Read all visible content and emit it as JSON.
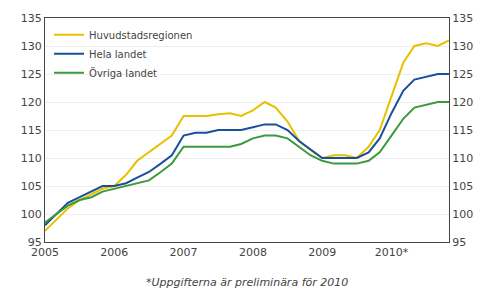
{
  "chart_data": {
    "type": "line",
    "annotations": [
      "*Uppgifterna är preliminära för 2010"
    ],
    "x": [
      2005.0,
      2005.17,
      2005.33,
      2005.5,
      2005.67,
      2005.83,
      2006.0,
      2006.17,
      2006.33,
      2006.5,
      2006.67,
      2006.83,
      2007.0,
      2007.17,
      2007.33,
      2007.5,
      2007.67,
      2007.83,
      2008.0,
      2008.17,
      2008.33,
      2008.5,
      2008.67,
      2008.83,
      2009.0,
      2009.17,
      2009.33,
      2009.5,
      2009.67,
      2009.83,
      2010.0,
      2010.17,
      2010.33,
      2010.5,
      2010.67,
      2010.83
    ],
    "series": [
      {
        "name": "Huvudstadsregionen",
        "color": "#e8c000",
        "values": [
          97.0,
          99.0,
          101.0,
          102.5,
          103.5,
          104.5,
          105.0,
          107.0,
          109.5,
          111.0,
          112.5,
          114.0,
          117.5,
          117.5,
          117.5,
          117.8,
          118.0,
          117.5,
          118.5,
          120.0,
          119.0,
          116.5,
          113.0,
          111.5,
          110.0,
          110.5,
          110.5,
          110.0,
          112.0,
          115.0,
          121.0,
          127.0,
          130.0,
          130.5,
          130.0,
          131.0
        ]
      },
      {
        "name": "Hela landet",
        "color": "#1a4f9c",
        "values": [
          98.0,
          100.0,
          102.0,
          103.0,
          104.0,
          105.0,
          105.0,
          105.5,
          106.5,
          107.5,
          109.0,
          110.5,
          114.0,
          114.5,
          114.5,
          115.0,
          115.0,
          115.0,
          115.5,
          116.0,
          116.0,
          115.0,
          113.0,
          111.5,
          110.0,
          110.0,
          110.0,
          110.0,
          111.0,
          113.5,
          118.0,
          122.0,
          124.0,
          124.5,
          125.0,
          125.0
        ]
      },
      {
        "name": "Övriga landet",
        "color": "#3a9a3a",
        "values": [
          98.5,
          100.0,
          101.5,
          102.5,
          103.0,
          104.0,
          104.5,
          105.0,
          105.5,
          106.0,
          107.5,
          109.0,
          112.0,
          112.0,
          112.0,
          112.0,
          112.0,
          112.5,
          113.5,
          114.0,
          114.0,
          113.5,
          112.0,
          110.5,
          109.5,
          109.0,
          109.0,
          109.0,
          109.5,
          111.0,
          114.0,
          117.0,
          119.0,
          119.5,
          120.0,
          120.0
        ]
      }
    ],
    "xlim": [
      2005.0,
      2010.83
    ],
    "xticks": [
      2005,
      2006,
      2007,
      2008,
      2009,
      {
        "value": 2010,
        "label": "2010*"
      }
    ],
    "ylim": [
      95,
      135
    ],
    "yticks": [
      95,
      100,
      105,
      110,
      115,
      120,
      125,
      130,
      135
    ],
    "y2lim": [
      95,
      135
    ],
    "y2ticks": [
      95,
      100,
      105,
      110,
      115,
      120,
      125,
      130,
      135
    ],
    "grid": true,
    "legend": "upper left"
  }
}
